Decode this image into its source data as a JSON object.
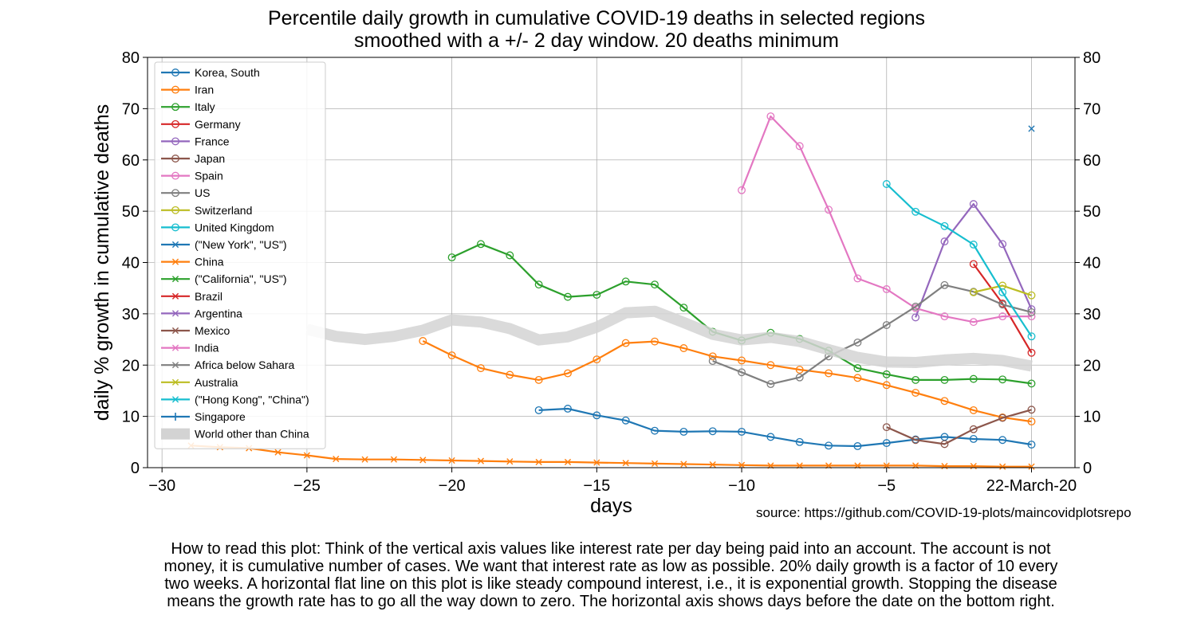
{
  "chart_data": {
    "type": "line",
    "title": "Percentile daily growth in cumulative COVID-19 deaths in selected regions",
    "subtitle": "smoothed with a +/- 2 day window. 20 deaths minimum",
    "xlabel": "days",
    "ylabel": "daily % growth in cumulative deaths",
    "xlim": [
      -30.5,
      1.5
    ],
    "ylim": [
      0,
      80
    ],
    "xticks": [
      -30,
      -25,
      -20,
      -15,
      -10,
      -5,
      0
    ],
    "xtick_labels": [
      "−30",
      "−25",
      "−20",
      "−15",
      "−10",
      "−5",
      "22-March-20"
    ],
    "yticks": [
      0,
      10,
      20,
      30,
      40,
      50,
      60,
      70,
      80
    ],
    "ytick_labels": [
      "0",
      "10",
      "20",
      "30",
      "40",
      "50",
      "60",
      "70",
      "80"
    ],
    "grid": true,
    "legend_position": "upper-left",
    "series": [
      {
        "name": "Korea, South",
        "color": "#1f77b4",
        "marker": "o",
        "x": [
          -17,
          -16,
          -15,
          -14,
          -13,
          -12,
          -11,
          -10,
          -9,
          -8,
          -7,
          -6,
          -5,
          -4,
          -3,
          -2,
          -1,
          0
        ],
        "y": [
          11.2,
          11.5,
          10.2,
          9.2,
          7.2,
          7.0,
          7.1,
          7.0,
          6.0,
          5.0,
          4.3,
          4.2,
          4.8,
          5.5,
          6.0,
          5.6,
          5.4,
          4.5
        ]
      },
      {
        "name": "Iran",
        "color": "#ff7f0e",
        "marker": "o",
        "x": [
          -21,
          -20,
          -19,
          -18,
          -17,
          -16,
          -15,
          -14,
          -13,
          -12,
          -11,
          -10,
          -9,
          -8,
          -7,
          -6,
          -5,
          -4,
          -3,
          -2,
          -1,
          0
        ],
        "y": [
          24.7,
          21.9,
          19.4,
          18.1,
          17.1,
          18.4,
          21.1,
          24.3,
          24.6,
          23.3,
          21.7,
          20.9,
          20.0,
          19.1,
          18.4,
          17.5,
          16.1,
          14.6,
          13.0,
          11.2,
          9.8,
          9.0
        ]
      },
      {
        "name": "Italy",
        "color": "#2ca02c",
        "marker": "o",
        "x": [
          -20,
          -19,
          -18,
          -17,
          -16,
          -15,
          -14,
          -13,
          -12,
          -11,
          -10,
          -9,
          -8,
          -7,
          -6,
          -5,
          -4,
          -3,
          -2,
          -1,
          0
        ],
        "y": [
          41.0,
          43.6,
          41.4,
          35.7,
          33.3,
          33.7,
          36.3,
          35.7,
          31.2,
          26.5,
          24.8,
          26.3,
          25.1,
          22.8,
          19.4,
          18.2,
          17.1,
          17.1,
          17.3,
          17.2,
          16.4
        ]
      },
      {
        "name": "Germany",
        "color": "#d62728",
        "marker": "o",
        "x": [
          -2,
          -1,
          0
        ],
        "y": [
          39.7,
          32.0,
          22.4
        ]
      },
      {
        "name": "France",
        "color": "#9467bd",
        "marker": "o",
        "x": [
          -4,
          -3,
          -2,
          -1,
          0
        ],
        "y": [
          29.3,
          44.1,
          51.4,
          43.6,
          30.9
        ]
      },
      {
        "name": "Japan",
        "color": "#8c564b",
        "marker": "o",
        "x": [
          -5,
          -4,
          -3,
          -2,
          -1,
          0
        ],
        "y": [
          7.9,
          5.4,
          4.6,
          7.5,
          9.7,
          11.3
        ]
      },
      {
        "name": "Spain",
        "color": "#e377c2",
        "marker": "o",
        "x": [
          -10,
          -9,
          -8,
          -7,
          -6,
          -5,
          -4,
          -3,
          -2,
          -1,
          0
        ],
        "y": [
          54.1,
          68.5,
          62.7,
          50.3,
          36.9,
          34.8,
          31.1,
          29.5,
          28.4,
          29.5,
          29.5
        ]
      },
      {
        "name": "US",
        "color": "#7f7f7f",
        "marker": "o",
        "x": [
          -11,
          -10,
          -9,
          -8,
          -7,
          -6,
          -5,
          -4,
          -3,
          -2,
          -1,
          0
        ],
        "y": [
          20.8,
          18.6,
          16.3,
          17.6,
          21.7,
          24.4,
          27.8,
          31.4,
          35.6,
          34.3,
          31.8,
          30.3
        ]
      },
      {
        "name": "Switzerland",
        "color": "#bcbd22",
        "marker": "o",
        "x": [
          -2,
          -1,
          0
        ],
        "y": [
          34.2,
          35.5,
          33.6
        ]
      },
      {
        "name": "United Kingdom",
        "color": "#17becf",
        "marker": "o",
        "x": [
          -5,
          -4,
          -3,
          -2,
          -1,
          0
        ],
        "y": [
          55.3,
          49.9,
          47.1,
          43.5,
          34.2,
          25.6
        ]
      },
      {
        "name": "(\"New York\", \"US\")",
        "color": "#1f77b4",
        "marker": "x",
        "x": [
          0
        ],
        "y": [
          66.1
        ]
      },
      {
        "name": "China",
        "color": "#ff7f0e",
        "marker": "x",
        "x": [
          -29,
          -28,
          -27,
          -26,
          -25,
          -24,
          -23,
          -22,
          -21,
          -20,
          -19,
          -18,
          -17,
          -16,
          -15,
          -14,
          -13,
          -12,
          -11,
          -10,
          -9,
          -8,
          -7,
          -6,
          -5,
          -4,
          -3,
          -2,
          -1,
          0
        ],
        "y": [
          4.3,
          4.0,
          3.8,
          3.0,
          2.4,
          1.7,
          1.6,
          1.6,
          1.5,
          1.4,
          1.3,
          1.2,
          1.1,
          1.1,
          1.0,
          0.9,
          0.8,
          0.7,
          0.6,
          0.5,
          0.4,
          0.4,
          0.4,
          0.4,
          0.4,
          0.4,
          0.3,
          0.3,
          0.2,
          0.2
        ]
      },
      {
        "name": "(\"California\", \"US\")",
        "color": "#2ca02c",
        "marker": "x",
        "x": [],
        "y": []
      },
      {
        "name": "Brazil",
        "color": "#d62728",
        "marker": "x",
        "x": [],
        "y": []
      },
      {
        "name": "Argentina",
        "color": "#9467bd",
        "marker": "x",
        "x": [],
        "y": []
      },
      {
        "name": "Mexico",
        "color": "#8c564b",
        "marker": "x",
        "x": [],
        "y": []
      },
      {
        "name": "India",
        "color": "#e377c2",
        "marker": "x",
        "x": [],
        "y": []
      },
      {
        "name": "Africa below Sahara",
        "color": "#7f7f7f",
        "marker": "x",
        "x": [],
        "y": []
      },
      {
        "name": "Australia",
        "color": "#bcbd22",
        "marker": "x",
        "x": [],
        "y": []
      },
      {
        "name": "(\"Hong Kong\", \"China\")",
        "color": "#17becf",
        "marker": "x",
        "x": [],
        "y": []
      },
      {
        "name": "Singapore",
        "color": "#1f77b4",
        "marker": "+",
        "x": [],
        "y": []
      },
      {
        "name": "World other than China",
        "color": "#d3d3d3",
        "marker": "none",
        "thick": true,
        "x": [
          -25,
          -24,
          -23,
          -22,
          -21,
          -20,
          -19,
          -18,
          -17,
          -16,
          -15,
          -14,
          -13,
          -12,
          -11,
          -10,
          -9,
          -8,
          -7,
          -6,
          -5,
          -4,
          -3,
          -2,
          -1,
          0
        ],
        "y": [
          27.0,
          25.6,
          25.0,
          25.6,
          26.8,
          28.8,
          28.4,
          27.1,
          24.9,
          25.5,
          27.4,
          30.2,
          30.5,
          28.3,
          26.0,
          24.9,
          25.4,
          24.6,
          23.0,
          21.5,
          20.6,
          20.5,
          21.0,
          21.3,
          20.9,
          19.8
        ]
      }
    ]
  },
  "source_text": "source: https://github.com/COVID-19-plots/maincovidplotsrepo",
  "note_lines": [
    "How to read this plot: Think of the vertical axis values like interest rate per day being paid into an account. The account is not",
    "money, it is cumulative number of cases. We want that interest rate as low as possible.  20% daily growth is a factor of 10 every",
    "two weeks. A horizontal flat line on this plot is like steady compound interest, i.e., it is exponential growth. Stopping the disease",
    "means the growth rate has to go all the way down to zero. The horizontal axis shows days before the date on the bottom right."
  ]
}
